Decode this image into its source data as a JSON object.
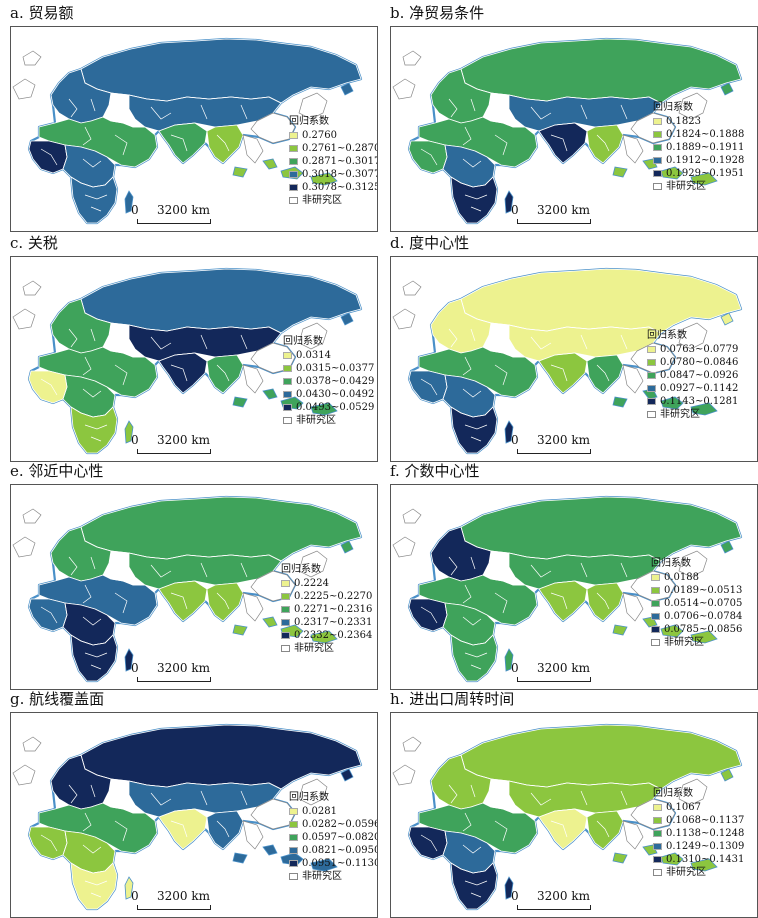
{
  "legend_title": "回归系数",
  "non_study_label": "非研究区",
  "scale_zero": "0",
  "scale_distance": "3200 km",
  "palette": [
    "#edf28f",
    "#8cc63f",
    "#3fa35b",
    "#2d6a9a",
    "#13285a"
  ],
  "non_study_color": "#ffffff",
  "ocean_outline_color": "#4a90c8",
  "panels": [
    {
      "title": "a. 贸易额",
      "legend": [
        "0.2760",
        "0.2761~0.2870",
        "0.2871~0.3017",
        "0.3018~0.3077",
        "0.3078~0.3125"
      ],
      "region_classes": {
        "russia": 3,
        "europe": 3,
        "central_asia": 3,
        "mena": 2,
        "west_africa": 4,
        "central_africa": 3,
        "southern_africa": 3,
        "south_asia": 2,
        "se_asia": 1
      }
    },
    {
      "title": "b. 净贸易条件",
      "legend": [
        "0.1823",
        "0.1824~0.1888",
        "0.1889~0.1911",
        "0.1912~0.1928",
        "0.1929~0.1951"
      ],
      "region_classes": {
        "russia": 2,
        "europe": 2,
        "central_asia": 3,
        "mena": 2,
        "west_africa": 2,
        "central_africa": 3,
        "southern_africa": 4,
        "south_asia": 4,
        "se_asia": 1
      }
    },
    {
      "title": "c. 关税",
      "legend": [
        "0.0314",
        "0.0315~0.0377",
        "0.0378~0.0429",
        "0.0430~0.0492",
        "0.0493~0.0529"
      ],
      "region_classes": {
        "russia": 3,
        "europe": 2,
        "central_asia": 4,
        "mena": 2,
        "west_africa": 0,
        "central_africa": 2,
        "southern_africa": 1,
        "south_asia": 4,
        "se_asia": 2
      }
    },
    {
      "title": "d. 度中心性",
      "legend": [
        "0.0763~0.0779",
        "0.0780~0.0846",
        "0.0847~0.0926",
        "0.0927~0.1142",
        "0.1143~0.1281"
      ],
      "region_classes": {
        "russia": 0,
        "europe": 0,
        "central_asia": 0,
        "mena": 2,
        "west_africa": 3,
        "central_africa": 3,
        "southern_africa": 4,
        "south_asia": 1,
        "se_asia": 2
      }
    },
    {
      "title": "e. 邻近中心性",
      "legend": [
        "0.2224",
        "0.2225~0.2270",
        "0.2271~0.2316",
        "0.2317~0.2331",
        "0.2332~0.2364"
      ],
      "region_classes": {
        "russia": 2,
        "europe": 2,
        "central_asia": 2,
        "mena": 3,
        "west_africa": 3,
        "central_africa": 4,
        "southern_africa": 4,
        "south_asia": 1,
        "se_asia": 1
      }
    },
    {
      "title": "f. 介数中心性",
      "legend": [
        "0.0188",
        "0.0189~0.0513",
        "0.0514~0.0705",
        "0.0706~0.0784",
        "0.0785~0.0856"
      ],
      "region_classes": {
        "russia": 2,
        "europe": 4,
        "central_asia": 2,
        "mena": 2,
        "west_africa": 4,
        "central_africa": 2,
        "southern_africa": 2,
        "south_asia": 1,
        "se_asia": 1
      }
    },
    {
      "title": "g. 航线覆盖面",
      "legend": [
        "0.0281",
        "0.0282~0.0596",
        "0.0597~0.0820",
        "0.0821~0.0950",
        "0.0951~0.1130"
      ],
      "region_classes": {
        "russia": 4,
        "europe": 4,
        "central_asia": 3,
        "mena": 2,
        "west_africa": 1,
        "central_africa": 1,
        "southern_africa": 0,
        "south_asia": 0,
        "se_asia": 3
      }
    },
    {
      "title": "h. 进出口周转时间",
      "legend": [
        "0.1067",
        "0.1068~0.1137",
        "0.1138~0.1248",
        "0.1249~0.1309",
        "0.1310~0.1431"
      ],
      "region_classes": {
        "russia": 1,
        "europe": 1,
        "central_asia": 1,
        "mena": 2,
        "west_africa": 4,
        "central_africa": 3,
        "southern_africa": 4,
        "south_asia": 0,
        "se_asia": 1
      }
    }
  ]
}
